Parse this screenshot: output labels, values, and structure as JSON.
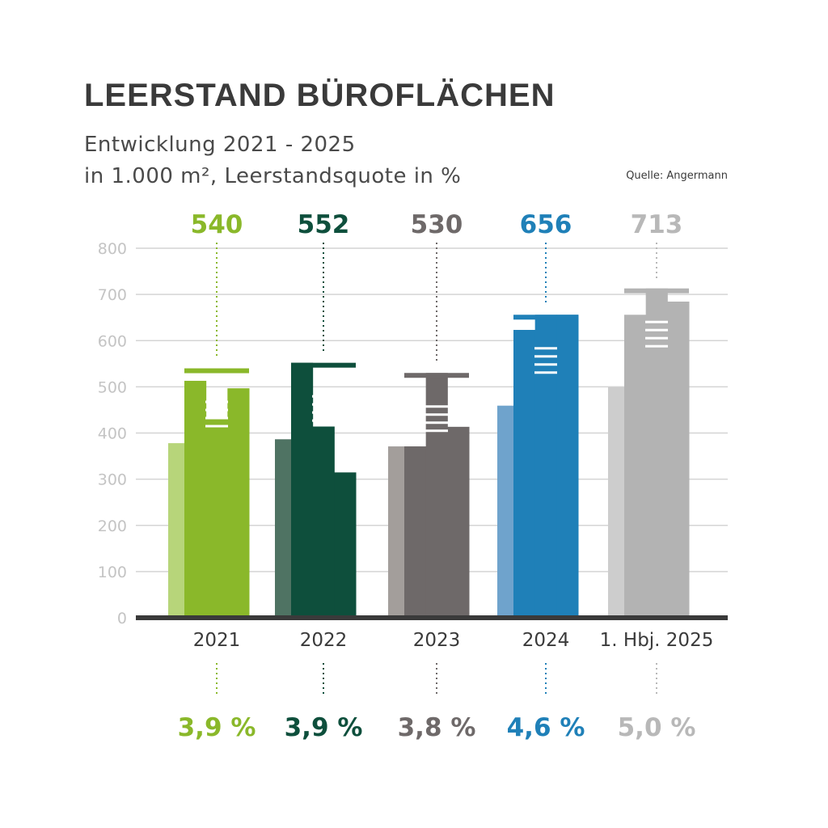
{
  "chart_data": {
    "type": "bar",
    "title": "LEERSTAND BÜROFLÄCHEN",
    "subtitle_line1": "Entwicklung 2021 - 2025",
    "subtitle_line2": "in 1.000 m², Leerstandsquote in %",
    "source": "Quelle: Angermann",
    "categories": [
      "2021",
      "2022",
      "2023",
      "2024",
      "1. Hbj. 2025"
    ],
    "values": [
      540,
      552,
      530,
      656,
      713
    ],
    "value_labels": [
      "540",
      "552",
      "530",
      "656",
      "713"
    ],
    "vacancy_rates": [
      "3,9 %",
      "3,9 %",
      "3,8 %",
      "4,6 %",
      "5,0 %"
    ],
    "yticks": [
      "0",
      "100",
      "200",
      "300",
      "400",
      "500",
      "600",
      "700",
      "800"
    ],
    "ylim": [
      0,
      800
    ],
    "grid": true,
    "colors": [
      "#8ab82a",
      "#0e4f3c",
      "#6e6969",
      "#1f80b8",
      "#b3b3b3"
    ],
    "light_colors": [
      "#b7d57a",
      "#4f7363",
      "#a39e9b",
      "#6fa3cc",
      "#cdcdcd"
    ],
    "label_colors": [
      "#8ab82a",
      "#0e4f3c",
      "#6e6969",
      "#1f80b8",
      "#b8b8b8"
    ]
  }
}
